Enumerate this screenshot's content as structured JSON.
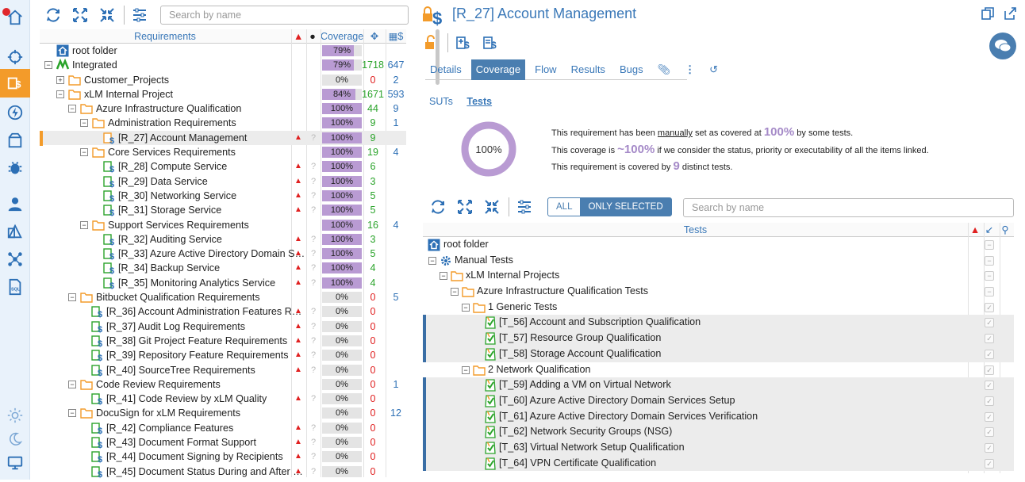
{
  "colors": {
    "accent": "#3a78b8",
    "nav_active": "#f39b2a",
    "coverage_fill": "#b99bd3",
    "priority": "#e02020",
    "count_green": "#2aa32a"
  },
  "left_toolbar": {
    "search_placeholder": "Search by name"
  },
  "left_columns": {
    "requirements": "Requirements",
    "coverage": "Coverage"
  },
  "requirements": [
    {
      "level": 0,
      "type": "root",
      "label": "root folder",
      "cov": "79%",
      "cov_pct": 79,
      "c1": "",
      "c2": ""
    },
    {
      "level": 0,
      "type": "project",
      "label": "Integrated",
      "cov": "79%",
      "cov_pct": 79,
      "c1": "1718",
      "c2": "647",
      "c1class": "green",
      "toggle": "−"
    },
    {
      "level": 1,
      "type": "folder",
      "label": "Customer_Projects",
      "cov": "0%",
      "cov_pct": 0,
      "c1": "0",
      "c2": "2",
      "c1class": "red",
      "toggle": "+"
    },
    {
      "level": 1,
      "type": "folder",
      "label": "xLM Internal Project",
      "cov": "84%",
      "cov_pct": 84,
      "c1": "1671",
      "c2": "593",
      "c1class": "green",
      "toggle": "−"
    },
    {
      "level": 2,
      "type": "folder",
      "label": "Azure Infrastructure Qualification",
      "cov": "100%",
      "cov_pct": 100,
      "c1": "44",
      "c2": "9",
      "c1class": "green",
      "toggle": "−"
    },
    {
      "level": 3,
      "type": "folder",
      "label": "Administration Requirements",
      "cov": "100%",
      "cov_pct": 100,
      "c1": "9",
      "c2": "1",
      "c1class": "green",
      "toggle": "−"
    },
    {
      "level": 4,
      "type": "req",
      "label": "[R_27] Account Management",
      "cov": "100%",
      "cov_pct": 100,
      "c1": "9",
      "c2": "",
      "c1class": "green",
      "selected": true,
      "lock": true,
      "pr": true
    },
    {
      "level": 3,
      "type": "folder",
      "label": "Core Services Requirements",
      "cov": "100%",
      "cov_pct": 100,
      "c1": "19",
      "c2": "4",
      "c1class": "green",
      "toggle": "−"
    },
    {
      "level": 4,
      "type": "req",
      "label": "[R_28] Compute Service",
      "cov": "100%",
      "cov_pct": 100,
      "c1": "6",
      "c2": "",
      "c1class": "green",
      "pr": true
    },
    {
      "level": 4,
      "type": "req",
      "label": "[R_29] Data Service",
      "cov": "100%",
      "cov_pct": 100,
      "c1": "3",
      "c2": "",
      "c1class": "green",
      "pr": true
    },
    {
      "level": 4,
      "type": "req",
      "label": "[R_30] Networking Service",
      "cov": "100%",
      "cov_pct": 100,
      "c1": "5",
      "c2": "",
      "c1class": "green",
      "pr": true
    },
    {
      "level": 4,
      "type": "req",
      "label": "[R_31] Storage Service",
      "cov": "100%",
      "cov_pct": 100,
      "c1": "5",
      "c2": "",
      "c1class": "green",
      "pr": true
    },
    {
      "level": 3,
      "type": "folder",
      "label": "Support Services Requirements",
      "cov": "100%",
      "cov_pct": 100,
      "c1": "16",
      "c2": "4",
      "c1class": "green",
      "toggle": "−"
    },
    {
      "level": 4,
      "type": "req",
      "label": "[R_32] Auditing Service",
      "cov": "100%",
      "cov_pct": 100,
      "c1": "3",
      "c2": "",
      "c1class": "green",
      "pr": true
    },
    {
      "level": 4,
      "type": "req",
      "label": "[R_33] Azure Active Directory Domain S…",
      "cov": "100%",
      "cov_pct": 100,
      "c1": "5",
      "c2": "",
      "c1class": "green",
      "pr": true
    },
    {
      "level": 4,
      "type": "req",
      "label": "[R_34] Backup Service",
      "cov": "100%",
      "cov_pct": 100,
      "c1": "4",
      "c2": "",
      "c1class": "green",
      "pr": true
    },
    {
      "level": 4,
      "type": "req",
      "label": "[R_35] Monitoring Analytics Service",
      "cov": "100%",
      "cov_pct": 100,
      "c1": "4",
      "c2": "",
      "c1class": "green",
      "pr": true
    },
    {
      "level": 2,
      "type": "folder",
      "label": "Bitbucket Qualification Requirements",
      "cov": "0%",
      "cov_pct": 0,
      "c1": "0",
      "c2": "5",
      "c1class": "red",
      "toggle": "−"
    },
    {
      "level": 3,
      "type": "req",
      "label": "[R_36] Account Administration Features R…",
      "cov": "0%",
      "cov_pct": 0,
      "c1": "0",
      "c2": "",
      "c1class": "red",
      "pr": true
    },
    {
      "level": 3,
      "type": "req",
      "label": "[R_37] Audit Log Requirements",
      "cov": "0%",
      "cov_pct": 0,
      "c1": "0",
      "c2": "",
      "c1class": "red",
      "pr": true
    },
    {
      "level": 3,
      "type": "req",
      "label": "[R_38] Git Project Feature Requirements",
      "cov": "0%",
      "cov_pct": 0,
      "c1": "0",
      "c2": "",
      "c1class": "red",
      "pr": true
    },
    {
      "level": 3,
      "type": "req",
      "label": "[R_39] Repository Feature Requirements",
      "cov": "0%",
      "cov_pct": 0,
      "c1": "0",
      "c2": "",
      "c1class": "red",
      "pr": true
    },
    {
      "level": 3,
      "type": "req",
      "label": "[R_40] SourceTree Requirements",
      "cov": "0%",
      "cov_pct": 0,
      "c1": "0",
      "c2": "",
      "c1class": "red",
      "pr": true
    },
    {
      "level": 2,
      "type": "folder",
      "label": "Code Review Requirements",
      "cov": "0%",
      "cov_pct": 0,
      "c1": "0",
      "c2": "1",
      "c1class": "red",
      "toggle": "−"
    },
    {
      "level": 3,
      "type": "req",
      "label": "[R_41] Code Review by xLM Quality",
      "cov": "0%",
      "cov_pct": 0,
      "c1": "0",
      "c2": "",
      "c1class": "red",
      "pr": true
    },
    {
      "level": 2,
      "type": "folder",
      "label": "DocuSign for xLM Requirements",
      "cov": "0%",
      "cov_pct": 0,
      "c1": "0",
      "c2": "12",
      "c1class": "red",
      "toggle": "−"
    },
    {
      "level": 3,
      "type": "req",
      "label": "[R_42] Compliance Features",
      "cov": "0%",
      "cov_pct": 0,
      "c1": "0",
      "c2": "",
      "c1class": "red",
      "pr": true
    },
    {
      "level": 3,
      "type": "req",
      "label": "[R_43] Document Format Support",
      "cov": "0%",
      "cov_pct": 0,
      "c1": "0",
      "c2": "",
      "c1class": "red",
      "pr": true
    },
    {
      "level": 3,
      "type": "req",
      "label": "[R_44] Document Signing by Recipients",
      "cov": "0%",
      "cov_pct": 0,
      "c1": "0",
      "c2": "",
      "c1class": "red",
      "pr": true
    },
    {
      "level": 3,
      "type": "req",
      "label": "[R_45] Document Status During and After …",
      "cov": "0%",
      "cov_pct": 0,
      "c1": "0",
      "c2": "",
      "c1class": "red",
      "pr": true
    }
  ],
  "detail": {
    "title": "[R_27] Account Management",
    "tabs": [
      "Details",
      "Coverage",
      "Flow",
      "Results",
      "Bugs"
    ],
    "active_tab": "Coverage",
    "subtabs": [
      "SUTs",
      "Tests"
    ],
    "donut_label": "100%",
    "donut_pct": 100,
    "info1_a": "This requirement has been ",
    "info1_b": "manually",
    "info1_c": " set as covered at ",
    "info1_val": "100%",
    "info1_d": " by some tests.",
    "info2_a": "This coverage is ",
    "info2_val": "~100%",
    "info2_b": " if we consider the status, priority or executability of all the items linked.",
    "info3_a": "This requirement is covered by ",
    "info3_val": "9",
    "info3_b": " distinct tests.",
    "seg_all": "ALL",
    "seg_selected": "ONLY SELECTED",
    "search_placeholder": "Search by name",
    "tests_header": "Tests"
  },
  "tests": [
    {
      "level": 0,
      "type": "root",
      "label": "root folder",
      "hl": false,
      "bar": false
    },
    {
      "level": 0,
      "type": "gear",
      "label": "Manual Tests",
      "hl": false,
      "bar": false,
      "toggle": "−"
    },
    {
      "level": 1,
      "type": "folder",
      "label": "xLM Internal Projects",
      "hl": false,
      "bar": false,
      "toggle": "−"
    },
    {
      "level": 2,
      "type": "folder",
      "label": "Azure Infrastructure Qualification Tests",
      "hl": false,
      "bar": false,
      "toggle": "−"
    },
    {
      "level": 3,
      "type": "folder",
      "label": "1 Generic Tests",
      "hl": false,
      "bar": false,
      "toggle": "−"
    },
    {
      "level": 4,
      "type": "test",
      "label": "[T_56] Account and Subscription Qualification",
      "hl": true,
      "bar": true
    },
    {
      "level": 4,
      "type": "test",
      "label": "[T_57] Resource Group Qualification",
      "hl": true,
      "bar": true
    },
    {
      "level": 4,
      "type": "test",
      "label": "[T_58] Storage Account Qualification",
      "hl": true,
      "bar": true
    },
    {
      "level": 3,
      "type": "folder",
      "label": "2 Network Qualification",
      "hl": false,
      "bar": false,
      "toggle": "−"
    },
    {
      "level": 4,
      "type": "test",
      "label": "[T_59] Adding a VM on Virtual Network",
      "hl": true,
      "bar": true
    },
    {
      "level": 4,
      "type": "test",
      "label": "[T_60] Azure Active Directory Domain Services Setup",
      "hl": true,
      "bar": true
    },
    {
      "level": 4,
      "type": "test",
      "label": "[T_61] Azure Active Directory Domain Services Verification",
      "hl": true,
      "bar": true
    },
    {
      "level": 4,
      "type": "test",
      "label": "[T_62] Network Security Groups (NSG)",
      "hl": true,
      "bar": true
    },
    {
      "level": 4,
      "type": "test",
      "label": "[T_63] Virtual Network Setup Qualification",
      "hl": true,
      "bar": true
    },
    {
      "level": 4,
      "type": "test",
      "label": "[T_64] VPN Certificate Qualification",
      "hl": true,
      "bar": true
    }
  ]
}
